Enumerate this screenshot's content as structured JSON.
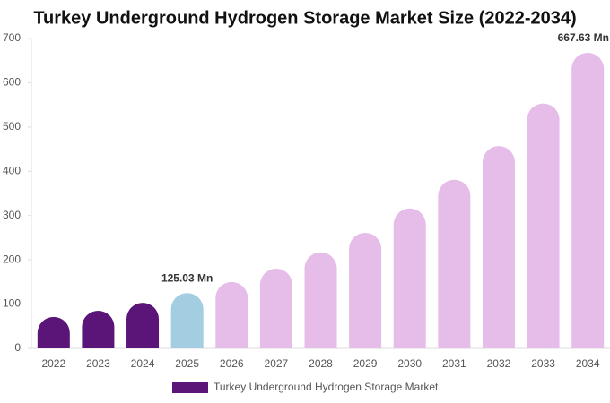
{
  "chart_data": {
    "type": "bar",
    "title": "Turkey Underground Hydrogen Storage Market Size (2022-2034)",
    "categories": [
      "2022",
      "2023",
      "2024",
      "2025",
      "2026",
      "2027",
      "2028",
      "2029",
      "2030",
      "2031",
      "2032",
      "2033",
      "2034"
    ],
    "series": [
      {
        "name": "Turkey Underground Hydrogen Storage Market",
        "color": "#5b1578",
        "values": [
          71,
          85,
          103,
          125.03,
          150,
          180,
          217,
          261,
          316,
          381,
          457,
          553,
          667.63
        ],
        "colors": [
          "#5b1578",
          "#5b1578",
          "#5b1578",
          "#a3cde0",
          "#e6bde8",
          "#e6bde8",
          "#e6bde8",
          "#e6bde8",
          "#e6bde8",
          "#e6bde8",
          "#e6bde8",
          "#e6bde8",
          "#e6bde8"
        ],
        "value_labels": [
          null,
          null,
          null,
          "125.03 Mn",
          null,
          null,
          null,
          null,
          null,
          null,
          null,
          null,
          "667.63 Mn"
        ]
      }
    ],
    "ylim": [
      0,
      700
    ],
    "yticks": [
      0,
      100,
      200,
      300,
      400,
      500,
      600,
      700
    ],
    "grid": false
  }
}
